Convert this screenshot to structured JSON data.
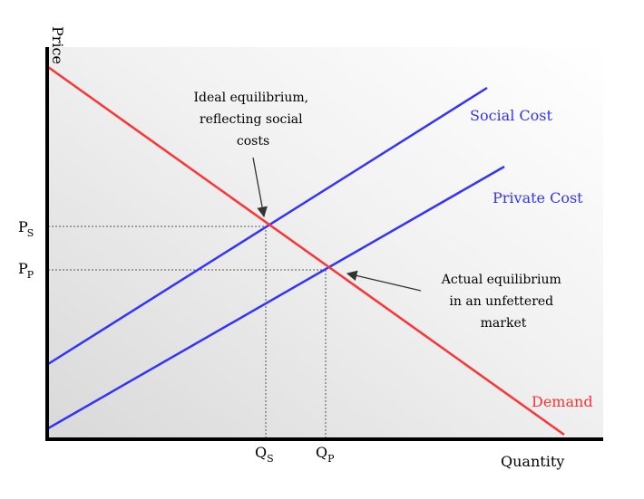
{
  "axis_labels": {
    "y": "Price",
    "x": "Quantity"
  },
  "curve_labels": {
    "social_cost": "Social Cost",
    "private_cost": "Private Cost",
    "demand": "Demand"
  },
  "price_markers": {
    "ps": {
      "main": "P",
      "sub": "S"
    },
    "pp": {
      "main": "P",
      "sub": "P"
    }
  },
  "quantity_markers": {
    "qs": {
      "main": "Q",
      "sub": "S"
    },
    "qp": {
      "main": "Q",
      "sub": "P"
    }
  },
  "annotations": {
    "ideal": [
      "Ideal equilibrium,",
      "reflecting social",
      "costs"
    ],
    "actual": [
      "Actual equilibrium",
      "in an unfettered",
      "market"
    ]
  },
  "colors": {
    "supply": "#3333ff",
    "demand": "#ff3333",
    "axis": "#000000",
    "guide": "#555555",
    "label_supply": "#3333ff",
    "label_demand": "#ff3333"
  }
}
